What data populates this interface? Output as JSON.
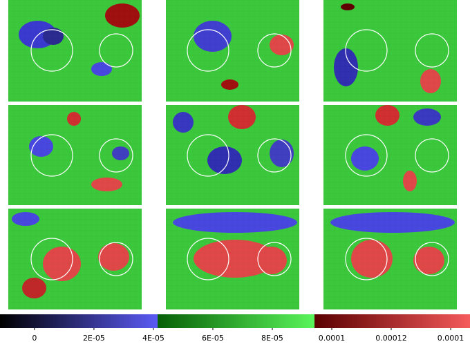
{
  "colorbar": {
    "lim": [
      -1.16e-05,
      0.0001465
    ],
    "ticks": [
      0,
      {
        "value": 2e-05,
        "label": "2E-05"
      },
      {
        "value": 4e-05,
        "label": "4E-05"
      },
      {
        "value": 6e-05,
        "label": "6E-05"
      },
      {
        "value": 8e-05,
        "label": "8E-05"
      },
      0.0001,
      0.00012,
      {
        "value": 0.00014,
        "label": "0.0001"
      }
    ]
  }
}
